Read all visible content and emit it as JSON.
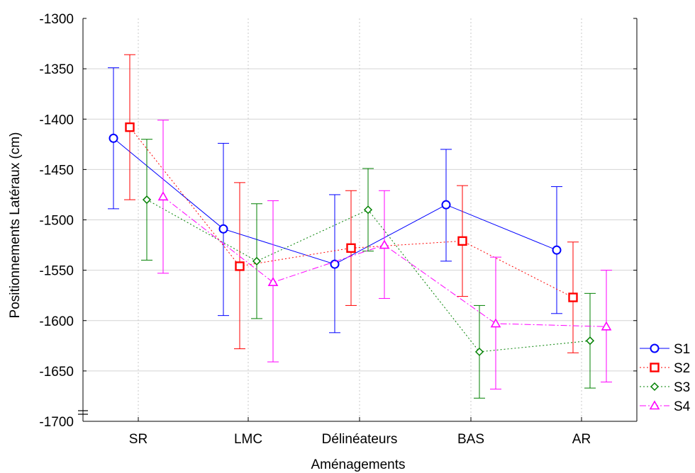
{
  "chart_data": {
    "type": "line",
    "title": "",
    "xlabel": "Aménagements",
    "ylabel": "Positionnements Latéraux (cm)",
    "categories": [
      "SR",
      "LMC",
      "Délinéateurs",
      "BAS",
      "AR"
    ],
    "ylim": [
      -1700,
      -1300
    ],
    "yticks": [
      -1300,
      -1350,
      -1400,
      -1450,
      -1500,
      -1550,
      -1600,
      -1650,
      -1700
    ],
    "grid": true,
    "error_bars": true,
    "legend_position": "right",
    "series": [
      {
        "name": "S1",
        "color": "#0000ff",
        "marker": "circle",
        "line_style": "solid",
        "values": [
          -1419,
          -1509,
          -1544,
          -1485,
          -1530
        ],
        "err_low": [
          -1489,
          -1595,
          -1612,
          -1541,
          -1593
        ],
        "err_high": [
          -1349,
          -1424,
          -1475,
          -1430,
          -1467
        ]
      },
      {
        "name": "S2",
        "color": "#ff0000",
        "marker": "square",
        "line_style": "dotted",
        "values": [
          -1408,
          -1546,
          -1528,
          -1521,
          -1577
        ],
        "err_low": [
          -1480,
          -1628,
          -1585,
          -1576,
          -1632
        ],
        "err_high": [
          -1336,
          -1463,
          -1471,
          -1466,
          -1522
        ]
      },
      {
        "name": "S3",
        "color": "#008000",
        "marker": "diamond",
        "line_style": "dotted",
        "values": [
          -1480,
          -1541,
          -1490,
          -1631,
          -1620
        ],
        "err_low": [
          -1540,
          -1598,
          -1531,
          -1677,
          -1667
        ],
        "err_high": [
          -1420,
          -1484,
          -1449,
          -1585,
          -1573
        ]
      },
      {
        "name": "S4",
        "color": "#ff00ff",
        "marker": "triangle",
        "line_style": "dashdot",
        "values": [
          -1477,
          -1562,
          -1525,
          -1603,
          -1606
        ],
        "err_low": [
          -1553,
          -1641,
          -1578,
          -1668,
          -1661
        ],
        "err_high": [
          -1401,
          -1481,
          -1471,
          -1537,
          -1550
        ]
      }
    ]
  }
}
